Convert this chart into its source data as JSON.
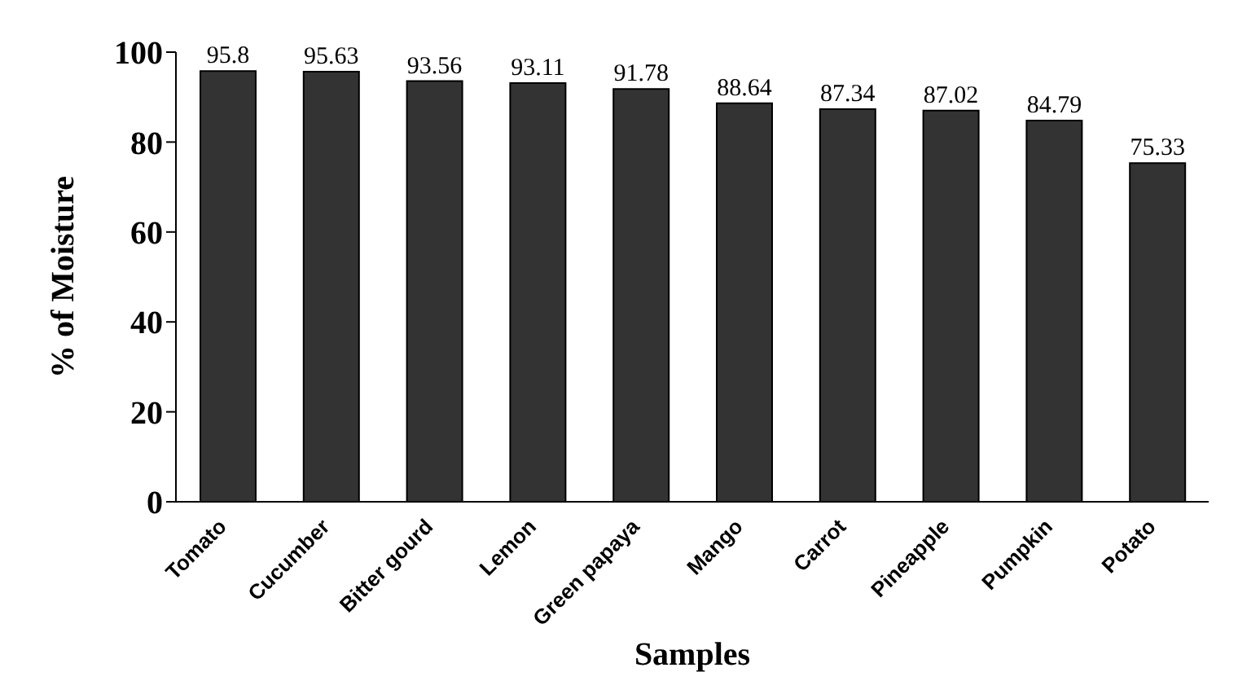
{
  "chart_data": {
    "type": "bar",
    "xlabel": "Samples",
    "ylabel": "% of Moisture",
    "categories": [
      "Tomato",
      "Cucumber",
      "Bitter gourd",
      "Lemon",
      "Green papaya",
      "Mango",
      "Carrot",
      "Pineapple",
      "Pumpkin",
      "Potato"
    ],
    "values": [
      95.8,
      95.63,
      93.56,
      93.11,
      91.78,
      88.64,
      87.34,
      87.02,
      84.79,
      75.33
    ],
    "color": "#333333",
    "ylim": [
      0,
      100
    ],
    "yticks": [
      0,
      20,
      40,
      60,
      80,
      100
    ],
    "data_labels": true
  }
}
